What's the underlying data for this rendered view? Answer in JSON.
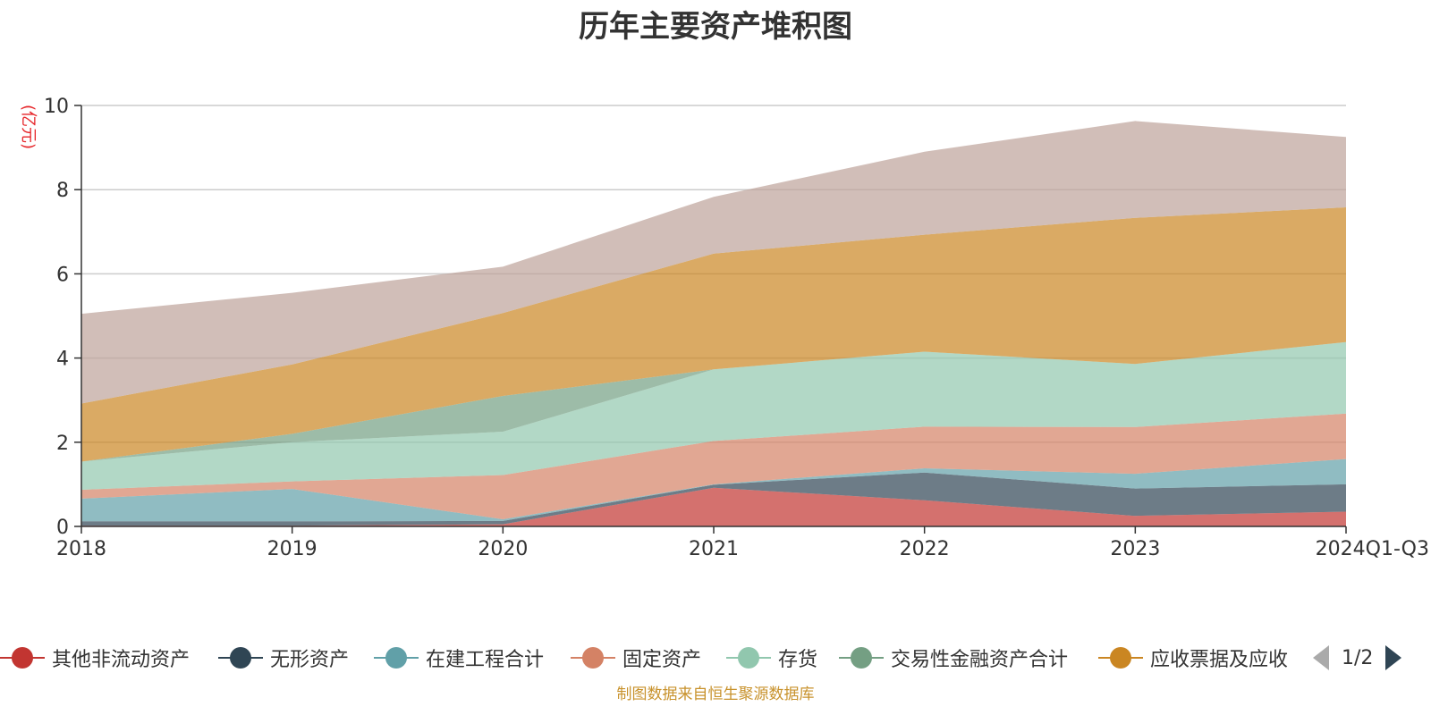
{
  "chart_data": {
    "type": "area",
    "stacked": true,
    "title": "历年主要资产堆积图",
    "ylabel": "(亿元)",
    "xlabel": "",
    "categories": [
      "2018",
      "2019",
      "2020",
      "2021",
      "2022",
      "2023",
      "2024Q1-Q3"
    ],
    "ylim": [
      0,
      10
    ],
    "yticks": [
      0,
      2,
      4,
      6,
      8,
      10
    ],
    "grid": true,
    "legend_position": "bottom",
    "series": [
      {
        "name": "其他非流动资产",
        "color": "#c23531",
        "values": [
          0.02,
          0.02,
          0.05,
          0.92,
          0.62,
          0.25,
          0.35
        ]
      },
      {
        "name": "无形资产",
        "color": "#2f4554",
        "values": [
          0.1,
          0.1,
          0.08,
          0.07,
          0.66,
          0.65,
          0.65
        ]
      },
      {
        "name": "在建工程合计",
        "color": "#61a0a8",
        "values": [
          0.54,
          0.77,
          0.04,
          0.01,
          0.1,
          0.35,
          0.6
        ]
      },
      {
        "name": "固定资产",
        "color": "#d48265",
        "values": [
          0.21,
          0.18,
          1.05,
          1.03,
          0.99,
          1.11,
          1.08
        ]
      },
      {
        "name": "存货",
        "color": "#91c7ae",
        "values": [
          0.67,
          0.93,
          1.03,
          1.7,
          1.78,
          1.5,
          1.7
        ]
      },
      {
        "name": "交易性金融资产合计",
        "color": "#749f83",
        "values": [
          0.0,
          0.2,
          0.85,
          0.0,
          0.0,
          0.0,
          0.0
        ]
      },
      {
        "name": "应收票据及应收",
        "color": "#ca8622",
        "values": [
          1.38,
          1.65,
          1.97,
          2.75,
          2.78,
          3.47,
          3.2
        ]
      },
      {
        "name": "",
        "color": "#bda29a",
        "values": [
          2.13,
          1.7,
          1.1,
          1.35,
          1.97,
          2.3,
          1.67
        ]
      }
    ]
  },
  "legend": {
    "pager_text": "1/2",
    "prev_icon": "triangle-left-icon",
    "next_icon": "triangle-right-icon"
  },
  "footer": {
    "source_text": "制图数据来自恒生聚源数据库"
  }
}
